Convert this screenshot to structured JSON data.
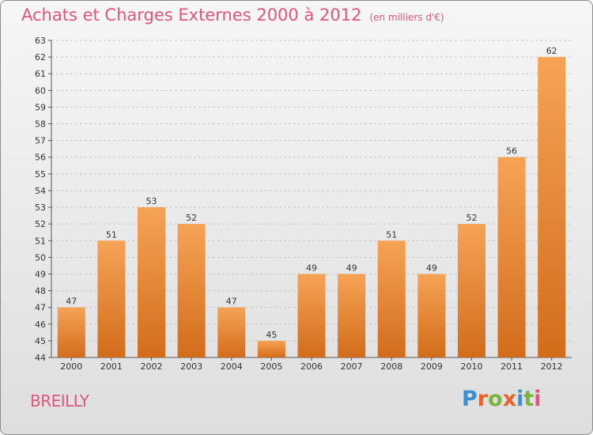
{
  "title": "Achats et Charges Externes 2000 à 2012",
  "unit": "(en milliers d'€)",
  "commune": "BREILLY",
  "logo": {
    "letters": [
      "P",
      "r",
      "o",
      "x",
      "i",
      "t",
      "i"
    ],
    "colors": [
      "#3a8fd6",
      "#e8632a",
      "#7ab53a",
      "#e8632a",
      "#3a8fd6",
      "#7ab53a",
      "#e0567e"
    ]
  },
  "colors": {
    "title": "#e0567e",
    "bar_top": "#f6a356",
    "bar_bottom": "#d26c1a",
    "grid": "#c8c8c8"
  },
  "chart_data": {
    "type": "bar",
    "categories": [
      "2000",
      "2001",
      "2002",
      "2003",
      "2004",
      "2005",
      "2006",
      "2007",
      "2008",
      "2009",
      "2010",
      "2011",
      "2012"
    ],
    "values": [
      47,
      51,
      53,
      52,
      47,
      45,
      49,
      49,
      51,
      49,
      52,
      56,
      62
    ],
    "ylim": [
      44,
      63
    ],
    "yticks": [
      44,
      45,
      46,
      47,
      48,
      49,
      50,
      51,
      52,
      53,
      54,
      55,
      56,
      57,
      58,
      59,
      60,
      61,
      62,
      63
    ],
    "grid": "horizontal dashed",
    "data_labels": true
  }
}
